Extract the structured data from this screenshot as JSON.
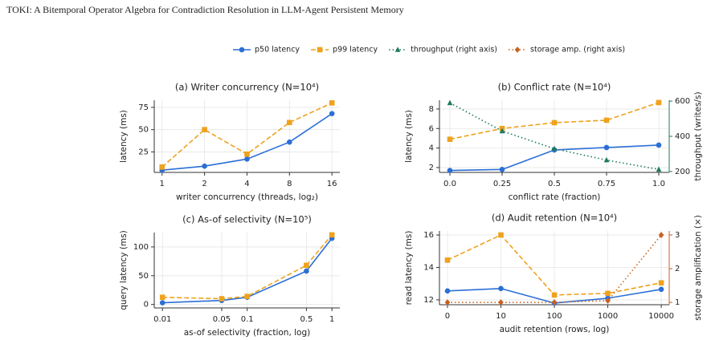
{
  "page_header": "TOKI: A Bitemporal Operator Algebra for Contradiction Resolution in LLM-Agent Persistent Memory",
  "legend": {
    "position": "top",
    "entries": [
      {
        "name": "p50 latency",
        "color": "#2b6fd6",
        "marker": "circle",
        "dash": "solid"
      },
      {
        "name": "p99 latency",
        "color": "#eea21d",
        "marker": "square",
        "dash": "dashed"
      },
      {
        "name": "throughput (right axis)",
        "color": "#1f7a5c",
        "marker": "triangle",
        "dash": "dotted"
      },
      {
        "name": "storage amp. (right axis)",
        "color": "#c8621e",
        "marker": "diamond",
        "dash": "dotted"
      }
    ]
  },
  "chart_data": [
    {
      "type": "line",
      "title": "(a) Writer concurrency (N=10⁴)",
      "xlabel": "writer concurrency (threads, log₂)",
      "ylabel": "latency (ms)",
      "x": [
        1,
        2,
        4,
        8,
        16
      ],
      "xscale": "log",
      "xlim": [
        0.88,
        18.2
      ],
      "xticks": [
        1,
        2,
        4,
        8,
        16
      ],
      "ylim": [
        2,
        83
      ],
      "yticks": [
        25,
        50,
        75
      ],
      "grid": true,
      "series": [
        {
          "color": "#2b6fd6",
          "marker": "circle",
          "dash": "solid",
          "values": [
            4.5,
            9,
            17,
            36,
            68
          ]
        },
        {
          "color": "#eea21d",
          "marker": "square",
          "dash": "dashed",
          "values": [
            8,
            50,
            22.5,
            58,
            80
          ]
        }
      ]
    },
    {
      "type": "line",
      "title": "(b) Conflict rate (N=10⁴)",
      "xlabel": "conflict rate (fraction)",
      "ylabel": "latency (ms)",
      "y2label": "throughput (writes/s)",
      "y2color": "#1f7a5c",
      "x": [
        0,
        0.25,
        0.5,
        0.75,
        1
      ],
      "xscale": "linear",
      "xlim": [
        -0.05,
        1.05
      ],
      "xticks": [
        {
          "value": 0,
          "label": "0.0"
        },
        0.25,
        0.5,
        0.75,
        {
          "value": 1,
          "label": "1.0"
        }
      ],
      "ylim": [
        1.5,
        8.9
      ],
      "yticks": [
        2,
        4,
        6,
        8
      ],
      "y2lim": [
        195,
        605
      ],
      "y2ticks": [
        200,
        400,
        600
      ],
      "grid": true,
      "series": [
        {
          "color": "#2b6fd6",
          "marker": "circle",
          "dash": "solid",
          "values": [
            1.7,
            1.8,
            3.8,
            4.05,
            4.3
          ]
        },
        {
          "color": "#eea21d",
          "marker": "square",
          "dash": "dashed",
          "values": [
            4.9,
            6.0,
            6.6,
            6.85,
            8.66
          ]
        },
        {
          "color": "#1f7a5c",
          "marker": "triangle",
          "dash": "dotted",
          "axis": "y2",
          "values": [
            590,
            430,
            330,
            265,
            212
          ]
        }
      ]
    },
    {
      "type": "line",
      "title": "(c) As-of selectivity (N=10⁵)",
      "xlabel": "as-of selectivity (fraction, log)",
      "ylabel": "query latency (ms)",
      "x": [
        0.01,
        0.05,
        0.1,
        0.5,
        1
      ],
      "xscale": "log",
      "xlim": [
        0.008,
        1.24
      ],
      "xticks": [
        0.01,
        0.05,
        0.1,
        0.5,
        1
      ],
      "ylim": [
        -6,
        125
      ],
      "yticks": [
        0,
        50,
        100
      ],
      "grid": true,
      "series": [
        {
          "color": "#2b6fd6",
          "marker": "circle",
          "dash": "solid",
          "values": [
            3,
            7,
            12.5,
            58,
            115
          ]
        },
        {
          "color": "#eea21d",
          "marker": "square",
          "dash": "dashed",
          "values": [
            12.5,
            10,
            14,
            68,
            121
          ]
        }
      ]
    },
    {
      "type": "line",
      "title": "(d) Audit retention (N=10⁴)",
      "xlabel": "audit retention (rows, log)",
      "ylabel": "read latency (ms)",
      "y2label": "storage amplification (×)",
      "y2color": "#c8621e",
      "x": [
        0,
        10,
        100,
        1000,
        10000
      ],
      "xscale": "symlog",
      "linthresh": 10,
      "xlim": [
        -1.5,
        14100
      ],
      "xticks": [
        0,
        10,
        100,
        1000,
        10000
      ],
      "ylim": [
        11.7,
        16.25
      ],
      "yticks": [
        12,
        14,
        16
      ],
      "y2lim": [
        0.93,
        3.12
      ],
      "y2ticks": [
        1,
        2,
        3
      ],
      "grid": true,
      "series": [
        {
          "color": "#2b6fd6",
          "marker": "circle",
          "dash": "solid",
          "values": [
            12.55,
            12.7,
            11.8,
            12.1,
            12.65
          ]
        },
        {
          "color": "#eea21d",
          "marker": "square",
          "dash": "dashed",
          "values": [
            14.45,
            16.0,
            12.3,
            12.4,
            13.05
          ]
        },
        {
          "color": "#c8621e",
          "marker": "diamond",
          "dash": "dotted",
          "axis": "y2",
          "values": [
            1.0,
            1.0,
            1.0,
            1.05,
            3.0
          ]
        }
      ]
    }
  ]
}
